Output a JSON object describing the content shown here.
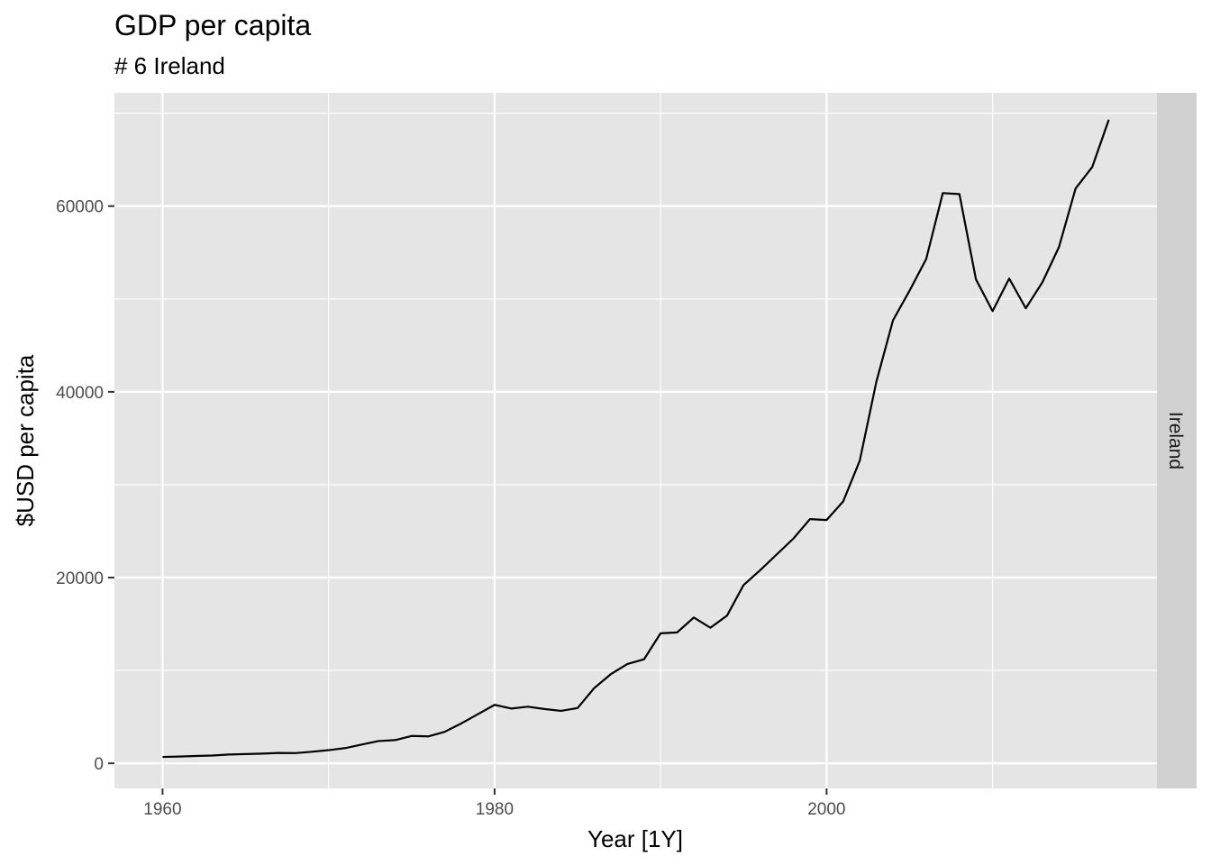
{
  "chart_data": {
    "type": "line",
    "title": "GDP per capita",
    "subtitle": "# 6 Ireland",
    "xlabel": "Year [1Y]",
    "ylabel": "$USD per capita",
    "facet_label": "Ireland",
    "xlim": [
      1957.1,
      2019.9
    ],
    "ylim": [
      -2700,
      72200
    ],
    "x_ticks": [
      1960,
      1980,
      2000
    ],
    "x_tick_labels": [
      "1960",
      "1980",
      "2000"
    ],
    "x_minor_ticks": [
      1970,
      1990,
      2010
    ],
    "y_ticks": [
      0,
      20000,
      40000,
      60000
    ],
    "y_tick_labels": [
      "0",
      "20000",
      "40000",
      "60000"
    ],
    "y_minor_ticks": [
      10000,
      30000,
      50000,
      70000
    ],
    "grid": true,
    "colors": {
      "panel": "#e5e5e5",
      "grid": "#ffffff",
      "line": "#000000",
      "strip": "#d1d1d1",
      "tick": "#333333"
    },
    "series": [
      {
        "x": [
          1960,
          1961,
          1962,
          1963,
          1964,
          1965,
          1966,
          1967,
          1968,
          1969,
          1970,
          1971,
          1972,
          1973,
          1974,
          1975,
          1976,
          1977,
          1978,
          1979,
          1980,
          1981,
          1982,
          1983,
          1984,
          1985,
          1986,
          1987,
          1988,
          1989,
          1990,
          1991,
          1992,
          1993,
          1994,
          1995,
          1996,
          1997,
          1998,
          1999,
          2000,
          2001,
          2002,
          2003,
          2004,
          2005,
          2006,
          2007,
          2008,
          2009,
          2010,
          2011,
          2012,
          2013,
          2014,
          2015,
          2016,
          2017
        ],
        "y": [
          690,
          730,
          790,
          840,
          950,
          1000,
          1050,
          1120,
          1100,
          1250,
          1420,
          1640,
          2020,
          2400,
          2500,
          2950,
          2900,
          3400,
          4300,
          5300,
          6300,
          5900,
          6100,
          5850,
          5650,
          5950,
          8100,
          9600,
          10700,
          11200,
          14000,
          14100,
          15700,
          14600,
          15900,
          19200,
          20800,
          22500,
          24200,
          26300,
          26200,
          28200,
          32600,
          41100,
          47700,
          50900,
          54300,
          61400,
          61300,
          52100,
          48700,
          52200,
          49000,
          51800,
          55600,
          61900,
          64200,
          69300
        ]
      }
    ]
  }
}
